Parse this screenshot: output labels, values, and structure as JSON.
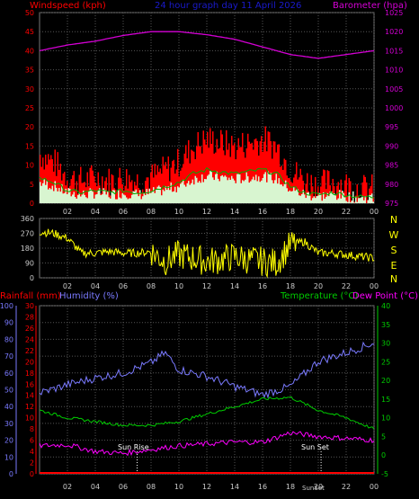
{
  "header": {
    "wind_label": "Windspeed (kph)",
    "title": "24 hour graph day 11 April 2026",
    "baro_label": "Barometer (hpa)"
  },
  "panel2": {
    "compass": [
      "N",
      "W",
      "S",
      "E",
      "N"
    ]
  },
  "panel3": {
    "rain_label": "Rainfall (mm)",
    "humidity_label": "Humidity (%)",
    "temp_label": "Temperature (°C)",
    "dew_label": "Dew Point (°C)",
    "sunrise_label": "Sun Rise",
    "sunset_label": "Sun Set",
    "sunset_bottom": "SunSet"
  },
  "colors": {
    "wind_label": "#ff0000",
    "baro_label": "#d400d4",
    "title": "#1a1acc",
    "grid": "#555555",
    "axis_text": "#cccccc",
    "barometer": "#d400d4",
    "gust": "#ff0000",
    "wind_avg": "#d8f5d0",
    "wind_green": "#00aa00",
    "direction": "#ffff00",
    "rain": "#ff0000",
    "humidity": "#7a7aff",
    "temperature": "#00cc00",
    "dewpoint": "#ff00ff",
    "temp_axis": "#00cc00"
  },
  "chart_data": [
    {
      "type": "area",
      "title": "24 hour graph day 11 April 2026",
      "x_ticks": [
        "02",
        "04",
        "06",
        "08",
        "10",
        "12",
        "14",
        "16",
        "18",
        "20",
        "22",
        "00"
      ],
      "y_left": {
        "label": "Windspeed (kph)",
        "ticks": [
          0,
          5,
          10,
          15,
          20,
          25,
          30,
          35,
          40,
          45,
          50
        ],
        "range": [
          0,
          50
        ]
      },
      "y_right": {
        "label": "Barometer (hpa)",
        "ticks": [
          975,
          980,
          985,
          990,
          995,
          1000,
          1005,
          1010,
          1015,
          1020,
          1025
        ],
        "range": [
          975,
          1025
        ]
      },
      "series": [
        {
          "name": "Barometer (hpa)",
          "x": [
            0,
            2,
            4,
            6,
            8,
            10,
            12,
            14,
            16,
            18,
            20,
            22,
            24
          ],
          "values": [
            1015.0,
            1016.5,
            1017.5,
            1019.0,
            1020.0,
            1020.0,
            1019.2,
            1018.0,
            1016.0,
            1014.0,
            1013.0,
            1014.0,
            1015.0
          ]
        },
        {
          "name": "Windspeed (kph)",
          "x": [
            0,
            1,
            2,
            3,
            4,
            5,
            6,
            7,
            8,
            9,
            10,
            11,
            12,
            13,
            14,
            15,
            16,
            17,
            18,
            19,
            20,
            21,
            22,
            23,
            24
          ],
          "values": [
            12,
            10,
            6,
            5,
            6,
            5,
            6,
            5,
            6,
            8,
            10,
            14,
            16,
            15,
            14,
            15,
            16,
            14,
            8,
            5,
            4,
            5,
            4,
            3,
            3
          ]
        }
      ]
    },
    {
      "type": "scatter",
      "y_ticks": [
        0,
        90,
        180,
        270,
        360
      ],
      "range": [
        0,
        360
      ],
      "x": [
        0,
        1,
        2,
        3,
        4,
        5,
        6,
        7,
        8,
        9,
        10,
        11,
        12,
        13,
        14,
        15,
        16,
        17,
        18,
        19,
        20,
        21,
        22,
        23,
        24
      ],
      "values": [
        280,
        270,
        240,
        150,
        150,
        160,
        150,
        150,
        160,
        100,
        140,
        120,
        100,
        110,
        130,
        110,
        100,
        90,
        200,
        220,
        150,
        150,
        140,
        130,
        120
      ]
    },
    {
      "type": "line",
      "y_left_rain": {
        "label": "Rainfall (mm)",
        "ticks": [
          0,
          2,
          4,
          6,
          8,
          10,
          12,
          14,
          16,
          18,
          20,
          22,
          24,
          26,
          28,
          30
        ],
        "range": [
          0,
          30
        ]
      },
      "y_left_humidity": {
        "label": "Humidity (%)",
        "ticks": [
          0,
          10,
          20,
          30,
          40,
          50,
          60,
          70,
          80,
          90,
          100
        ],
        "range": [
          0,
          100
        ]
      },
      "y_right": {
        "label": "Temperature (°C)",
        "ticks": [
          -5,
          0,
          5,
          10,
          15,
          20,
          25,
          30,
          35,
          40
        ],
        "range": [
          -5,
          40
        ]
      },
      "annotations": [
        "Sun Rise",
        "Sun Set"
      ],
      "series": [
        {
          "name": "Humidity (%)",
          "x": [
            0,
            2,
            4,
            6,
            8,
            9,
            10,
            12,
            14,
            16,
            18,
            20,
            22,
            24
          ],
          "values": [
            48,
            53,
            57,
            60,
            66,
            72,
            62,
            58,
            52,
            47,
            52,
            67,
            72,
            78
          ]
        },
        {
          "name": "Temperature (°C)",
          "x": [
            0,
            2,
            4,
            6,
            8,
            10,
            12,
            14,
            16,
            18,
            20,
            22,
            24
          ],
          "values": [
            12,
            10,
            9,
            8,
            8,
            9,
            11,
            13,
            15,
            15.5,
            12,
            10,
            7
          ]
        },
        {
          "name": "Dew Point (°C)",
          "x": [
            0,
            2,
            4,
            6,
            8,
            10,
            12,
            14,
            16,
            18,
            20,
            22,
            24
          ],
          "values": [
            2.5,
            2.8,
            1.0,
            0.5,
            1.5,
            2.5,
            3.0,
            3.5,
            3.5,
            6.0,
            5.0,
            4.5,
            4.0
          ]
        },
        {
          "name": "Rainfall (mm)",
          "x": [
            0,
            24
          ],
          "values": [
            0,
            0
          ]
        }
      ]
    }
  ]
}
